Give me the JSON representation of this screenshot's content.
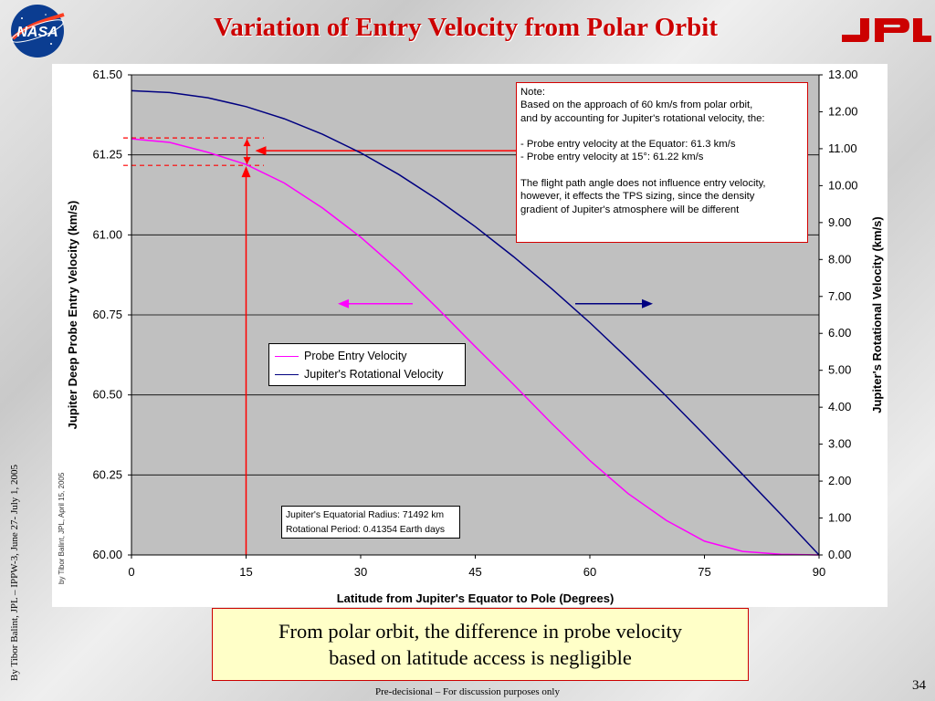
{
  "slide": {
    "title": "Variation of Entry Velocity from Polar Orbit",
    "side_credit": "By Tibor Balint, JPL – IPPW-3, June  27- July 1, 2005",
    "callout_lines": [
      "From polar orbit, the difference in probe velocity",
      "based on latitude access is negligible"
    ],
    "footer": "Pre-decisional – For discussion purposes only",
    "page_number": "34",
    "logos": {
      "left": "nasa-logo",
      "right": "jpl-logo"
    },
    "colors": {
      "title": "#cc0000",
      "jpl": "#cc0000",
      "nasa_blue": "#0b3d91"
    }
  },
  "chart_data": {
    "type": "line",
    "xlabel": "Latitude from Jupiter's Equator to Pole (Degrees)",
    "ylabel": "Jupiter Deep Probe Entry Velocity (km/s)",
    "y2label": "Jupiter's Rotational Velocity (km/s)",
    "xlim": [
      0,
      90
    ],
    "ylim": [
      60.0,
      61.5
    ],
    "y2lim": [
      0.0,
      13.0
    ],
    "x_ticks": [
      "0",
      "15",
      "30",
      "45",
      "60",
      "75",
      "90"
    ],
    "y_ticks": [
      "60.00",
      "60.25",
      "60.50",
      "60.75",
      "61.00",
      "61.25",
      "61.50"
    ],
    "y2_ticks": [
      "0.00",
      "1.00",
      "2.00",
      "3.00",
      "4.00",
      "5.00",
      "6.00",
      "7.00",
      "8.00",
      "9.00",
      "10.00",
      "11.00",
      "12.00",
      "13.00"
    ],
    "grid": "horizontal",
    "legend_position": "center-left",
    "series": [
      {
        "name": "Probe Entry Velocity",
        "axis": "left",
        "color": "#ff00ff",
        "x": [
          0,
          5,
          10,
          15,
          20,
          25,
          30,
          35,
          40,
          45,
          50,
          55,
          60,
          65,
          70,
          75,
          80,
          85,
          90
        ],
        "y": [
          61.3,
          61.289,
          61.258,
          61.22,
          61.162,
          61.084,
          60.993,
          60.888,
          60.772,
          60.651,
          60.533,
          60.411,
          60.295,
          60.192,
          60.108,
          60.043,
          60.011,
          60.002,
          60.0
        ]
      },
      {
        "name": "Jupiter's Rotational Velocity",
        "axis": "right",
        "color": "#000080",
        "x": [
          0,
          5,
          10,
          15,
          20,
          25,
          30,
          35,
          40,
          45,
          50,
          55,
          60,
          65,
          70,
          75,
          80,
          85,
          90
        ],
        "y": [
          12.57,
          12.52,
          12.38,
          12.14,
          11.81,
          11.39,
          10.89,
          10.3,
          9.63,
          8.89,
          8.08,
          7.21,
          6.29,
          5.31,
          4.3,
          3.25,
          2.18,
          1.1,
          0.0
        ]
      }
    ],
    "annotations": {
      "note_lines": [
        "Note:",
        "Based on the approach of 60 km/s from polar orbit,",
        "and by accounting for Jupiter's rotational velocity, the:",
        "",
        "- Probe entry velocity at the Equator: 61.3 km/s",
        "- Probe entry velocity at 15°: 61.22 km/s",
        "",
        "The flight path angle does not influence entry velocity,",
        "however, it effects the TPS sizing, since the density",
        "gradient of Jupiter's atmosphere will be different"
      ],
      "info_lines": [
        "Jupiter's Equatorial Radius: 71492 km",
        "Rotational Period: 0.41354 Earth days"
      ],
      "credit": "by Tibor Balint, JPL, April 15, 2005",
      "markers": {
        "equator_velocity": 61.3,
        "latitude_15_velocity": 61.22,
        "latitude_marker": 15
      }
    }
  }
}
